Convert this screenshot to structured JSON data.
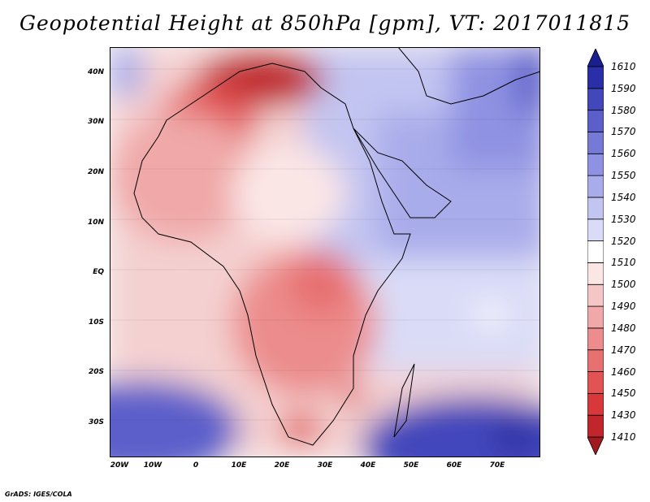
{
  "title": "Geopotential Height at 850hPa [gpm], VT: 2017011815",
  "credit": "GrADS: IGES/COLA",
  "map": {
    "lon_range": [
      -20,
      80
    ],
    "lat_range": [
      -37,
      45
    ],
    "lat_ticks": [
      {
        "value": 40,
        "label": "40N"
      },
      {
        "value": 30,
        "label": "30N"
      },
      {
        "value": 20,
        "label": "20N"
      },
      {
        "value": 10,
        "label": "10N"
      },
      {
        "value": 0,
        "label": "EQ"
      },
      {
        "value": -10,
        "label": "10S"
      },
      {
        "value": -20,
        "label": "20S"
      },
      {
        "value": -30,
        "label": "30S"
      }
    ],
    "lon_ticks": [
      {
        "value": -20,
        "label": "20W"
      },
      {
        "value": -10,
        "label": "10W"
      },
      {
        "value": 0,
        "label": "0"
      },
      {
        "value": 10,
        "label": "10E"
      },
      {
        "value": 20,
        "label": "20E"
      },
      {
        "value": 30,
        "label": "30E"
      },
      {
        "value": 40,
        "label": "40E"
      },
      {
        "value": 50,
        "label": "50E"
      },
      {
        "value": 60,
        "label": "60E"
      },
      {
        "value": 70,
        "label": "70E"
      }
    ]
  },
  "colorbar": {
    "levels": [
      "1410",
      "1430",
      "1450",
      "1460",
      "1470",
      "1480",
      "1490",
      "1500",
      "1510",
      "1520",
      "1530",
      "1540",
      "1550",
      "1560",
      "1570",
      "1580",
      "1590",
      "1610"
    ],
    "colors": [
      "#a01a20",
      "#c0262b",
      "#d8383a",
      "#e25454",
      "#e77070",
      "#ec8c8c",
      "#f0a8a8",
      "#f5c6c6",
      "#fbe6e6",
      "#ffffff",
      "#dadcf7",
      "#c3c5f1",
      "#a9acea",
      "#8f92e2",
      "#7679d6",
      "#5c5fca",
      "#4247bb",
      "#2a2fa8",
      "#1a1f8f"
    ]
  }
}
